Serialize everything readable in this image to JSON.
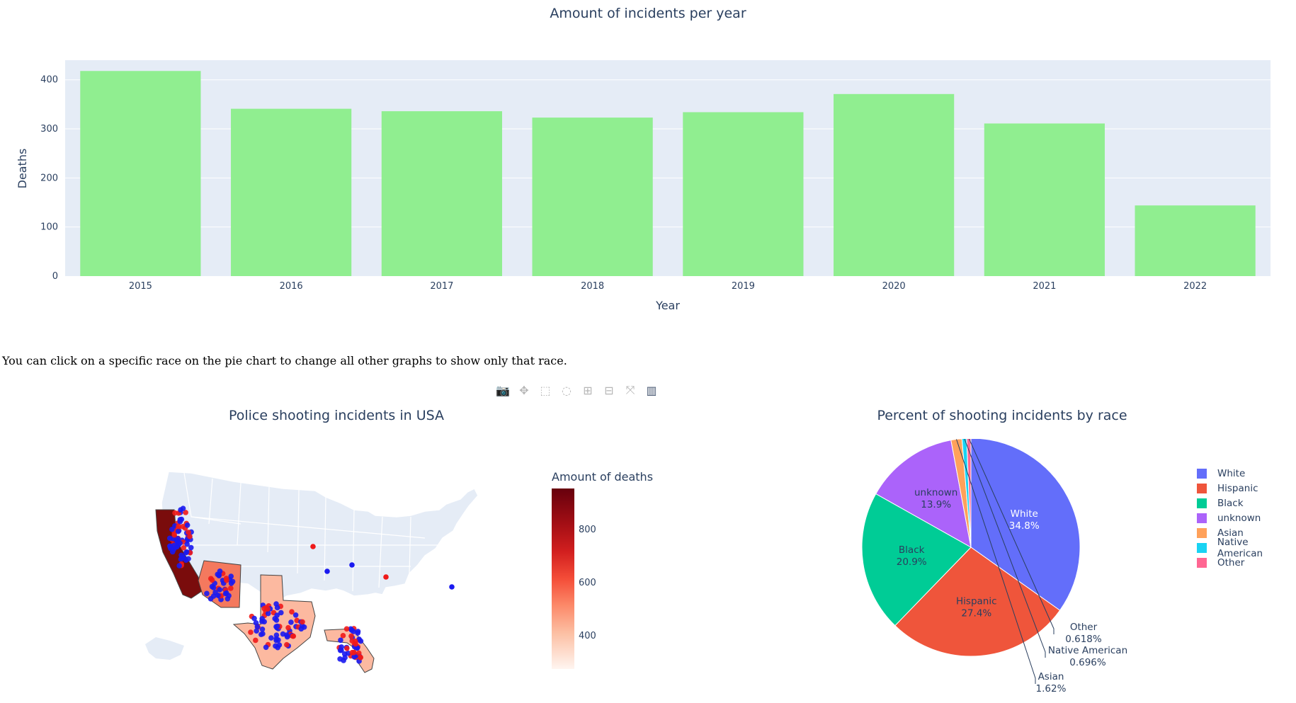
{
  "bar_chart": {
    "title": "Amount of incidents per year",
    "xlabel": "Year",
    "ylabel": "Deaths",
    "y_ticks": [
      "0",
      "100",
      "200",
      "300",
      "400"
    ],
    "bar_color": "#90ee90",
    "plot_bg": "#e5ecf6"
  },
  "note": "You can click on a specific race on the pie chart to change all other graphs to show only that race.",
  "modebar": {
    "buttons": [
      {
        "name": "camera-icon",
        "glyph": "📷"
      },
      {
        "name": "pan-icon",
        "glyph": "✥"
      },
      {
        "name": "box-select-icon",
        "glyph": "⬚"
      },
      {
        "name": "lasso-select-icon",
        "glyph": "◌"
      },
      {
        "name": "zoom-in-icon",
        "glyph": "⊞"
      },
      {
        "name": "zoom-out-icon",
        "glyph": "⊟"
      },
      {
        "name": "autoscale-icon",
        "glyph": "⤧"
      },
      {
        "name": "plotly-logo-icon",
        "glyph": "▥"
      }
    ]
  },
  "map": {
    "title": "Police shooting incidents in USA",
    "colorbar_title": "Amount of deaths",
    "colorbar_ticks": [
      "800",
      "600",
      "400"
    ],
    "states": [
      "California",
      "Arizona",
      "Texas",
      "Florida"
    ]
  },
  "pie": {
    "title": "Percent of shooting incidents by race"
  },
  "chart_data": [
    {
      "type": "bar",
      "title": "Amount of incidents per year",
      "xlabel": "Year",
      "ylabel": "Deaths",
      "categories": [
        "2015",
        "2016",
        "2017",
        "2018",
        "2019",
        "2020",
        "2021",
        "2022"
      ],
      "values": [
        418,
        341,
        336,
        323,
        334,
        371,
        311,
        144
      ],
      "ylim": [
        0,
        440
      ]
    },
    {
      "type": "pie",
      "title": "Percent of shooting incidents by race",
      "labels": [
        "White",
        "Hispanic",
        "Black",
        "unknown",
        "Asian",
        "Native American",
        "Other"
      ],
      "values": [
        34.8,
        27.4,
        20.9,
        13.9,
        1.62,
        0.696,
        0.618
      ],
      "value_labels": [
        "34.8%",
        "27.4%",
        "20.9%",
        "13.9%",
        "1.62%",
        "0.696%",
        "0.618%"
      ],
      "colors": [
        "#636efa",
        "#ef553b",
        "#00cc96",
        "#ab63fa",
        "#ffa15a",
        "#19d3f3",
        "#ff6692"
      ],
      "legend_position": "right"
    }
  ]
}
